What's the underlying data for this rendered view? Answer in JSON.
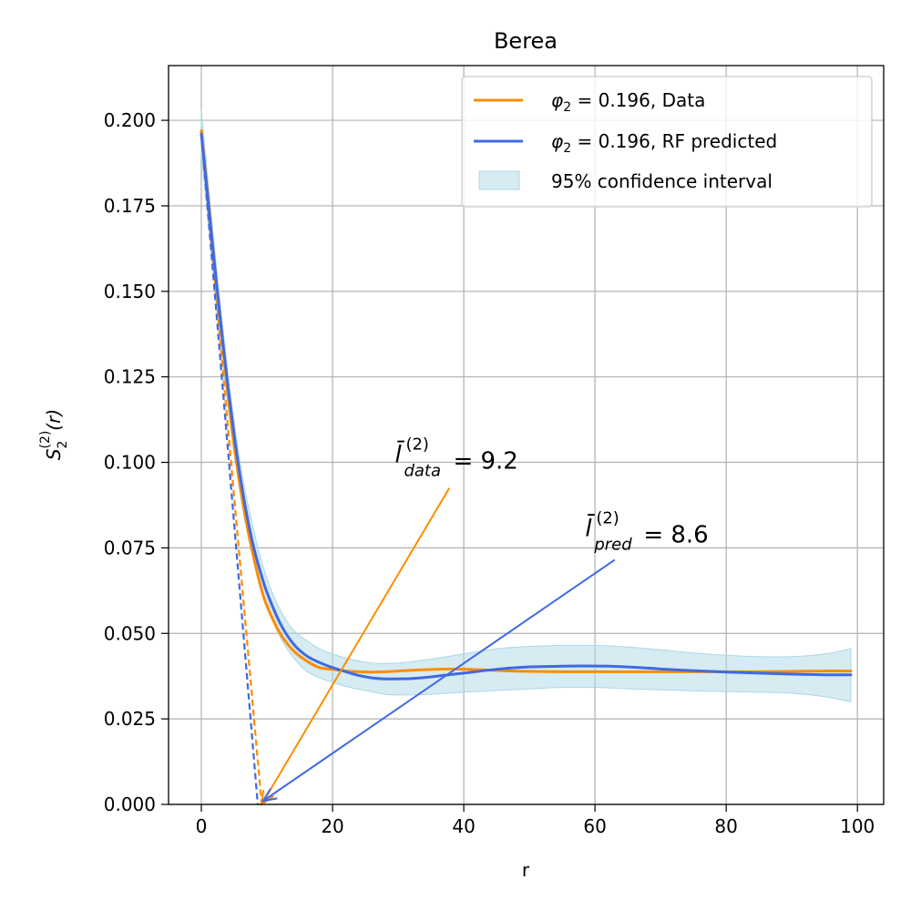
{
  "chart_data": {
    "type": "line",
    "title": "Berea",
    "xlabel": "r",
    "ylabel": {
      "base": "S",
      "sub": "2",
      "sup": "(2)",
      "arg": "(r)"
    },
    "xlim": [
      -5,
      104
    ],
    "ylim": [
      0,
      0.216
    ],
    "xticks": [
      0,
      20,
      40,
      60,
      80,
      100
    ],
    "xtick_labels": [
      "0",
      "20",
      "40",
      "60",
      "80",
      "100"
    ],
    "yticks": [
      0.0,
      0.025,
      0.05,
      0.075,
      0.1,
      0.125,
      0.15,
      0.175,
      0.2
    ],
    "ytick_labels": [
      "0.000",
      "0.025",
      "0.050",
      "0.075",
      "0.100",
      "0.125",
      "0.150",
      "0.175",
      "0.200"
    ],
    "grid": true,
    "legend_position": "top-right",
    "series": [
      {
        "name": "data",
        "legend": {
          "phi": "φ",
          "sub": "2",
          "rest": " = 0.196, Data"
        },
        "color": "#ff8c00",
        "x": [
          0,
          1,
          2,
          3,
          4,
          5,
          6,
          7,
          8,
          9,
          10,
          12,
          14,
          16,
          18,
          20,
          22,
          24,
          26,
          28,
          30,
          34,
          38,
          42,
          46,
          50,
          55,
          60,
          65,
          70,
          75,
          80,
          85,
          90,
          95,
          99
        ],
        "values": [
          0.197,
          0.178,
          0.158,
          0.139,
          0.121,
          0.105,
          0.092,
          0.081,
          0.072,
          0.064,
          0.058,
          0.05,
          0.045,
          0.042,
          0.04,
          0.0395,
          0.039,
          0.0388,
          0.0387,
          0.0388,
          0.039,
          0.0394,
          0.0396,
          0.0394,
          0.0391,
          0.0389,
          0.0388,
          0.0388,
          0.0388,
          0.0388,
          0.0388,
          0.0388,
          0.0388,
          0.0389,
          0.039,
          0.039
        ]
      },
      {
        "name": "pred",
        "legend": {
          "phi": "φ",
          "sub": "2",
          "rest": " = 0.196, RF predicted"
        },
        "color": "#4169e1",
        "x": [
          0,
          1,
          2,
          3,
          4,
          5,
          6,
          7,
          8,
          9,
          10,
          12,
          14,
          16,
          18,
          20,
          22,
          24,
          26,
          28,
          30,
          32,
          35,
          40,
          45,
          50,
          55,
          58,
          62,
          66,
          70,
          75,
          80,
          85,
          90,
          95,
          99
        ],
        "values": [
          0.196,
          0.177,
          0.158,
          0.14,
          0.123,
          0.108,
          0.095,
          0.084,
          0.075,
          0.068,
          0.062,
          0.053,
          0.047,
          0.0435,
          0.0415,
          0.04,
          0.0388,
          0.0377,
          0.037,
          0.0367,
          0.0367,
          0.0368,
          0.0373,
          0.0384,
          0.0395,
          0.0402,
          0.0404,
          0.0405,
          0.0404,
          0.0401,
          0.0396,
          0.0391,
          0.0387,
          0.0384,
          0.0381,
          0.0379,
          0.0379
        ]
      }
    ],
    "confidence_band": {
      "legend": "95% confidence interval",
      "color": "#add8e6",
      "x": [
        0,
        2,
        4,
        6,
        8,
        10,
        12,
        14,
        16,
        18,
        20,
        22,
        25,
        28,
        31,
        35,
        40,
        45,
        50,
        55,
        60,
        65,
        70,
        75,
        80,
        85,
        90,
        95,
        99
      ],
      "upper": [
        0.203,
        0.163,
        0.127,
        0.099,
        0.08,
        0.066,
        0.057,
        0.051,
        0.048,
        0.0455,
        0.044,
        0.0428,
        0.0416,
        0.0412,
        0.0415,
        0.0425,
        0.044,
        0.0455,
        0.0462,
        0.0465,
        0.0465,
        0.046,
        0.0452,
        0.0443,
        0.0436,
        0.0432,
        0.0432,
        0.044,
        0.0455
      ],
      "lower": [
        0.19,
        0.152,
        0.117,
        0.09,
        0.071,
        0.058,
        0.049,
        0.043,
        0.039,
        0.037,
        0.0357,
        0.0345,
        0.0333,
        0.0322,
        0.032,
        0.0322,
        0.0328,
        0.0333,
        0.0338,
        0.0342,
        0.0342,
        0.0338,
        0.0335,
        0.0332,
        0.033,
        0.0328,
        0.0325,
        0.0315,
        0.03
      ]
    },
    "tangent_lines": [
      {
        "series": "data",
        "color": "#ff8c00",
        "from": [
          0,
          0.197
        ],
        "to": [
          9.2,
          0
        ]
      },
      {
        "series": "pred",
        "color": "#4169e1",
        "from": [
          0,
          0.196
        ],
        "to": [
          8.6,
          0
        ]
      }
    ],
    "annotations": [
      {
        "series": "data",
        "color": "#ff8c00",
        "symbol": "l̄",
        "sup": "(2)",
        "sub": "data",
        "text": " = 9.2",
        "text_at": [
          29.5,
          0.1
        ],
        "arrow_from": [
          37.8,
          0.0925
        ],
        "arrow_to": [
          9.2,
          0
        ]
      },
      {
        "series": "pred",
        "color": "#4169e1",
        "symbol": "l̄",
        "sup": "(2)",
        "sub": "pred",
        "text": " = 8.6",
        "text_at": [
          58.5,
          0.0785
        ],
        "arrow_from": [
          63.0,
          0.0715
        ],
        "arrow_to": [
          9.4,
          0.001
        ]
      }
    ]
  }
}
